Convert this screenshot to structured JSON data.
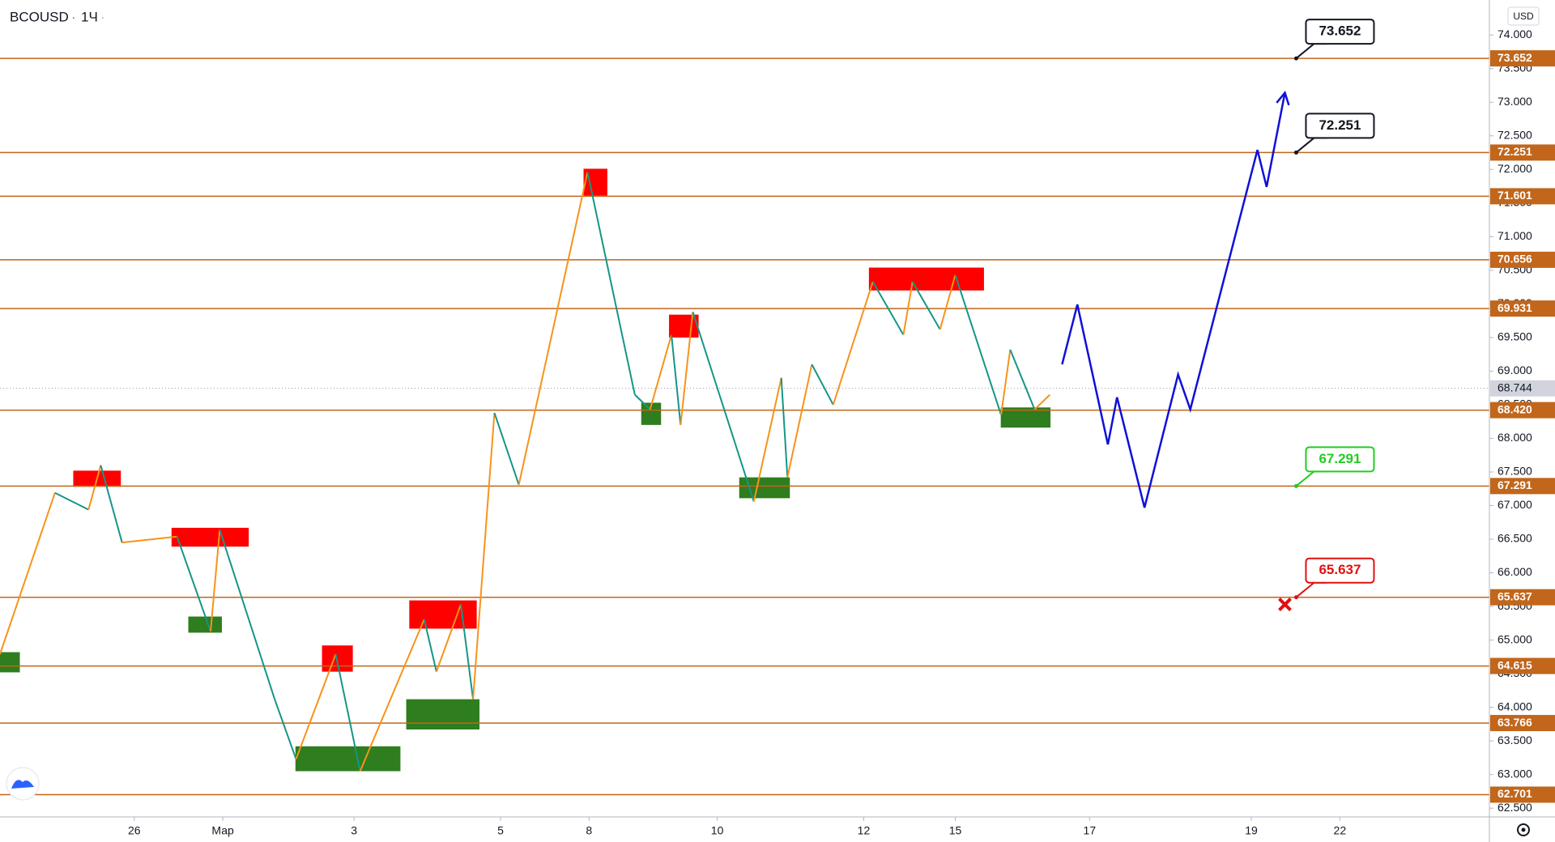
{
  "chart_data": {
    "type": "candlestick-levels",
    "symbol": "BCOUSD",
    "interval": "1Ч",
    "currency": "USD",
    "xlim": [
      0,
      488
    ],
    "ylim": [
      62.37,
      74.52
    ],
    "xticks": [
      {
        "value": 44,
        "label": "26"
      },
      {
        "value": 73,
        "label": "Мар"
      },
      {
        "value": 116,
        "label": "3"
      },
      {
        "value": 164,
        "label": "5"
      },
      {
        "value": 193,
        "label": "8"
      },
      {
        "value": 235,
        "label": "10"
      },
      {
        "value": 283,
        "label": "12"
      },
      {
        "value": 313,
        "label": "15"
      },
      {
        "value": 357,
        "label": "17"
      },
      {
        "value": 410,
        "label": "19"
      },
      {
        "value": 439,
        "label": "22"
      }
    ],
    "yticks": [
      {
        "value": 62.5,
        "label": "62.500"
      },
      {
        "value": 63,
        "label": "63.000"
      },
      {
        "value": 63.5,
        "label": "63.500"
      },
      {
        "value": 64,
        "label": "64.000"
      },
      {
        "value": 64.5,
        "label": "64.500"
      },
      {
        "value": 65,
        "label": "65.000"
      },
      {
        "value": 65.5,
        "label": "65.500"
      },
      {
        "value": 66,
        "label": "66.000"
      },
      {
        "value": 66.5,
        "label": "66.500"
      },
      {
        "value": 67,
        "label": "67.000"
      },
      {
        "value": 67.5,
        "label": "67.500"
      },
      {
        "value": 68,
        "label": "68.000"
      },
      {
        "value": 68.5,
        "label": "68.500"
      },
      {
        "value": 69,
        "label": "69.000"
      },
      {
        "value": 69.5,
        "label": "69.500"
      },
      {
        "value": 70,
        "label": "70.000"
      },
      {
        "value": 70.5,
        "label": "70.500"
      },
      {
        "value": 71,
        "label": "71.000"
      },
      {
        "value": 71.5,
        "label": "71.500"
      },
      {
        "value": 72,
        "label": "72.000"
      },
      {
        "value": 72.5,
        "label": "72.500"
      },
      {
        "value": 73,
        "label": "73.000"
      },
      {
        "value": 73.5,
        "label": "73.500"
      },
      {
        "value": 74,
        "label": "74.000"
      }
    ],
    "levels_color": "#c1661b",
    "levels": [
      73.652,
      72.251,
      71.601,
      70.656,
      69.931,
      {
        "value": 68.42,
        "label": "68.420"
      },
      67.291,
      65.637,
      64.615,
      63.766,
      62.701
    ],
    "last_price": 68.744,
    "up_color": "#f7931a",
    "down_color": "#159687",
    "zigzag": {
      "x": [
        0,
        18,
        29,
        33,
        40,
        58,
        69,
        72,
        90,
        97,
        110,
        118,
        139,
        143,
        151,
        155,
        162,
        170,
        192.5,
        208,
        213,
        220,
        223,
        227,
        247,
        256,
        258,
        266,
        273,
        286,
        296,
        299,
        308,
        313,
        328,
        331,
        339,
        344
      ],
      "values": [
        64.79,
        67.19,
        66.94,
        67.6,
        66.45,
        66.54,
        65.13,
        66.64,
        64.12,
        63.23,
        64.79,
        63.05,
        65.31,
        64.53,
        65.53,
        64.12,
        68.38,
        67.31,
        71.96,
        68.65,
        68.43,
        69.54,
        68.2,
        69.88,
        67.06,
        68.9,
        67.42,
        69.1,
        68.5,
        70.33,
        69.54,
        70.33,
        69.62,
        70.43,
        68.35,
        69.32,
        68.43,
        68.65
      ]
    },
    "forecast": {
      "color": "#1010d8",
      "x": [
        348,
        353,
        363,
        366,
        375,
        386,
        390,
        412,
        415,
        421
      ],
      "values": [
        69.1,
        69.99,
        67.91,
        68.61,
        66.97,
        68.95,
        68.43,
        72.29,
        71.74,
        73.14
      ]
    },
    "supply_color": "#ff0000",
    "demand_color": "#2e7d1e",
    "supply_zones": [
      {
        "x1": 24,
        "x2": 39.6,
        "y1": 67.28,
        "y2": 67.52
      },
      {
        "x1": 56.2,
        "x2": 81.5,
        "y1": 66.39,
        "y2": 66.67
      },
      {
        "x1": 105.5,
        "x2": 115.6,
        "y1": 64.53,
        "y2": 64.92
      },
      {
        "x1": 134.1,
        "x2": 156.2,
        "y1": 65.17,
        "y2": 65.59
      },
      {
        "x1": 191.2,
        "x2": 199,
        "y1": 71.61,
        "y2": 72.01
      },
      {
        "x1": 219.2,
        "x2": 228.9,
        "y1": 69.5,
        "y2": 69.84
      },
      {
        "x1": 284.7,
        "x2": 322.4,
        "y1": 70.2,
        "y2": 70.54
      }
    ],
    "demand_zones": [
      {
        "x1": 0,
        "x2": 6.5,
        "y1": 64.52,
        "y2": 64.82
      },
      {
        "x1": 61.7,
        "x2": 72.7,
        "y1": 65.11,
        "y2": 65.35
      },
      {
        "x1": 96.8,
        "x2": 131.2,
        "y1": 63.05,
        "y2": 63.42
      },
      {
        "x1": 133.1,
        "x2": 157.1,
        "y1": 63.67,
        "y2": 64.12
      },
      {
        "x1": 210.1,
        "x2": 216.6,
        "y1": 68.2,
        "y2": 68.53
      },
      {
        "x1": 242.2,
        "x2": 258.8,
        "y1": 67.11,
        "y2": 67.42
      },
      {
        "x1": 327.9,
        "x2": 344.2,
        "y1": 68.16,
        "y2": 68.46
      }
    ],
    "callouts": [
      {
        "x": 424.7,
        "value": 73.652,
        "color": "#131722"
      },
      {
        "x": 424.7,
        "value": 72.251,
        "color": "#131722"
      },
      {
        "x": 424.7,
        "value": 67.291,
        "color": "#22cc22"
      },
      {
        "x": 424.7,
        "value": 65.637,
        "color": "#e01010"
      }
    ],
    "stop_mark": {
      "x": 421,
      "value": 65.53,
      "color": "#e01010"
    }
  }
}
